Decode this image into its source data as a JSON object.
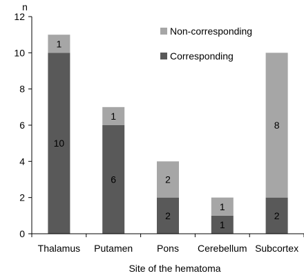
{
  "chart_data": {
    "type": "bar",
    "stacked": true,
    "categories": [
      "Thalamus",
      "Putamen",
      "Pons",
      "Cerebellum",
      "Subcortex"
    ],
    "series": [
      {
        "name": "Corresponding",
        "values": [
          10,
          6,
          2,
          1,
          2
        ],
        "color": "#595959"
      },
      {
        "name": "Non-corresponding",
        "values": [
          1,
          1,
          2,
          1,
          8
        ],
        "color": "#a6a6a6"
      }
    ],
    "xlabel": "Site of the hematoma",
    "ylabel": "n",
    "ylim": [
      0,
      12
    ],
    "yticks": [
      0,
      2,
      4,
      6,
      8,
      10,
      12
    ],
    "grid": false,
    "legend_position": "top-right",
    "legend_order": [
      "Non-corresponding",
      "Corresponding"
    ],
    "data_labels": true
  }
}
